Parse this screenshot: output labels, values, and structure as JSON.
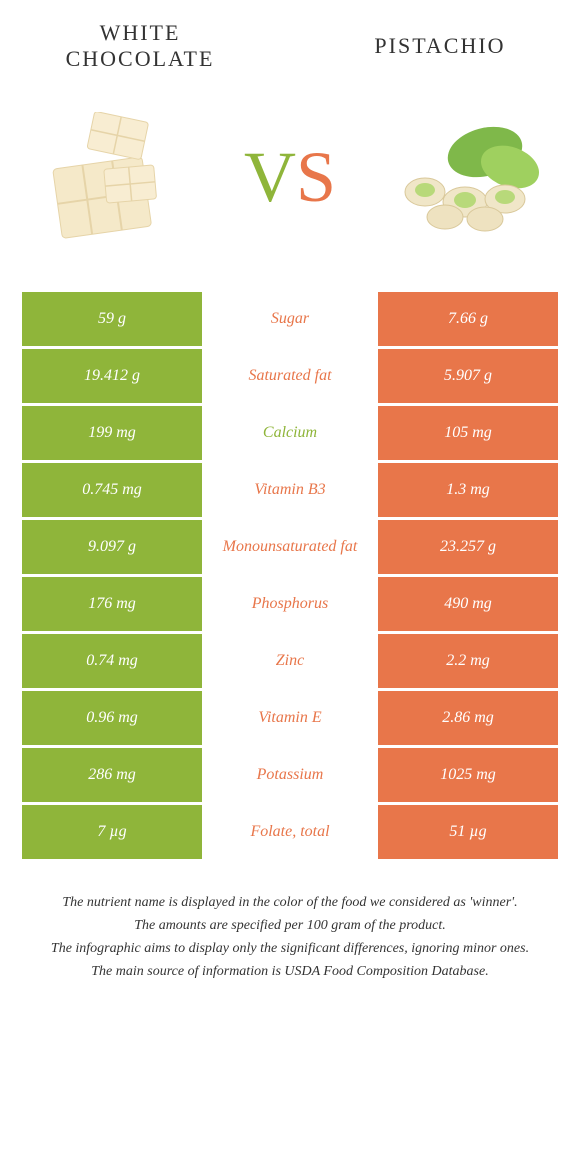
{
  "colors": {
    "green": "#8fb53a",
    "orange": "#e8764a",
    "green_text": "#8fb53a",
    "orange_text": "#e8764a"
  },
  "left_food": "WHITE CHOCOLATE",
  "right_food": "PISTACHIO",
  "vs_v": "V",
  "vs_s": "S",
  "rows": [
    {
      "left": "59 g",
      "mid": "Sugar",
      "right": "7.66 g",
      "mid_color": "#e8764a"
    },
    {
      "left": "19.412 g",
      "mid": "Saturated fat",
      "right": "5.907 g",
      "mid_color": "#e8764a"
    },
    {
      "left": "199 mg",
      "mid": "Calcium",
      "right": "105 mg",
      "mid_color": "#8fb53a"
    },
    {
      "left": "0.745 mg",
      "mid": "Vitamin B3",
      "right": "1.3 mg",
      "mid_color": "#e8764a"
    },
    {
      "left": "9.097 g",
      "mid": "Monounsaturated fat",
      "right": "23.257 g",
      "mid_color": "#e8764a"
    },
    {
      "left": "176 mg",
      "mid": "Phosphorus",
      "right": "490 mg",
      "mid_color": "#e8764a"
    },
    {
      "left": "0.74 mg",
      "mid": "Zinc",
      "right": "2.2 mg",
      "mid_color": "#e8764a"
    },
    {
      "left": "0.96 mg",
      "mid": "Vitamin E",
      "right": "2.86 mg",
      "mid_color": "#e8764a"
    },
    {
      "left": "286 mg",
      "mid": "Potassium",
      "right": "1025 mg",
      "mid_color": "#e8764a"
    },
    {
      "left": "7 µg",
      "mid": "Folate, total",
      "right": "51 µg",
      "mid_color": "#e8764a"
    }
  ],
  "footer": [
    "The nutrient name is displayed in the color of the food we considered as 'winner'.",
    "The amounts are specified per 100 gram of the product.",
    "The infographic aims to display only the significant differences, ignoring minor ones.",
    "The main source of information is USDA Food Composition Database."
  ]
}
